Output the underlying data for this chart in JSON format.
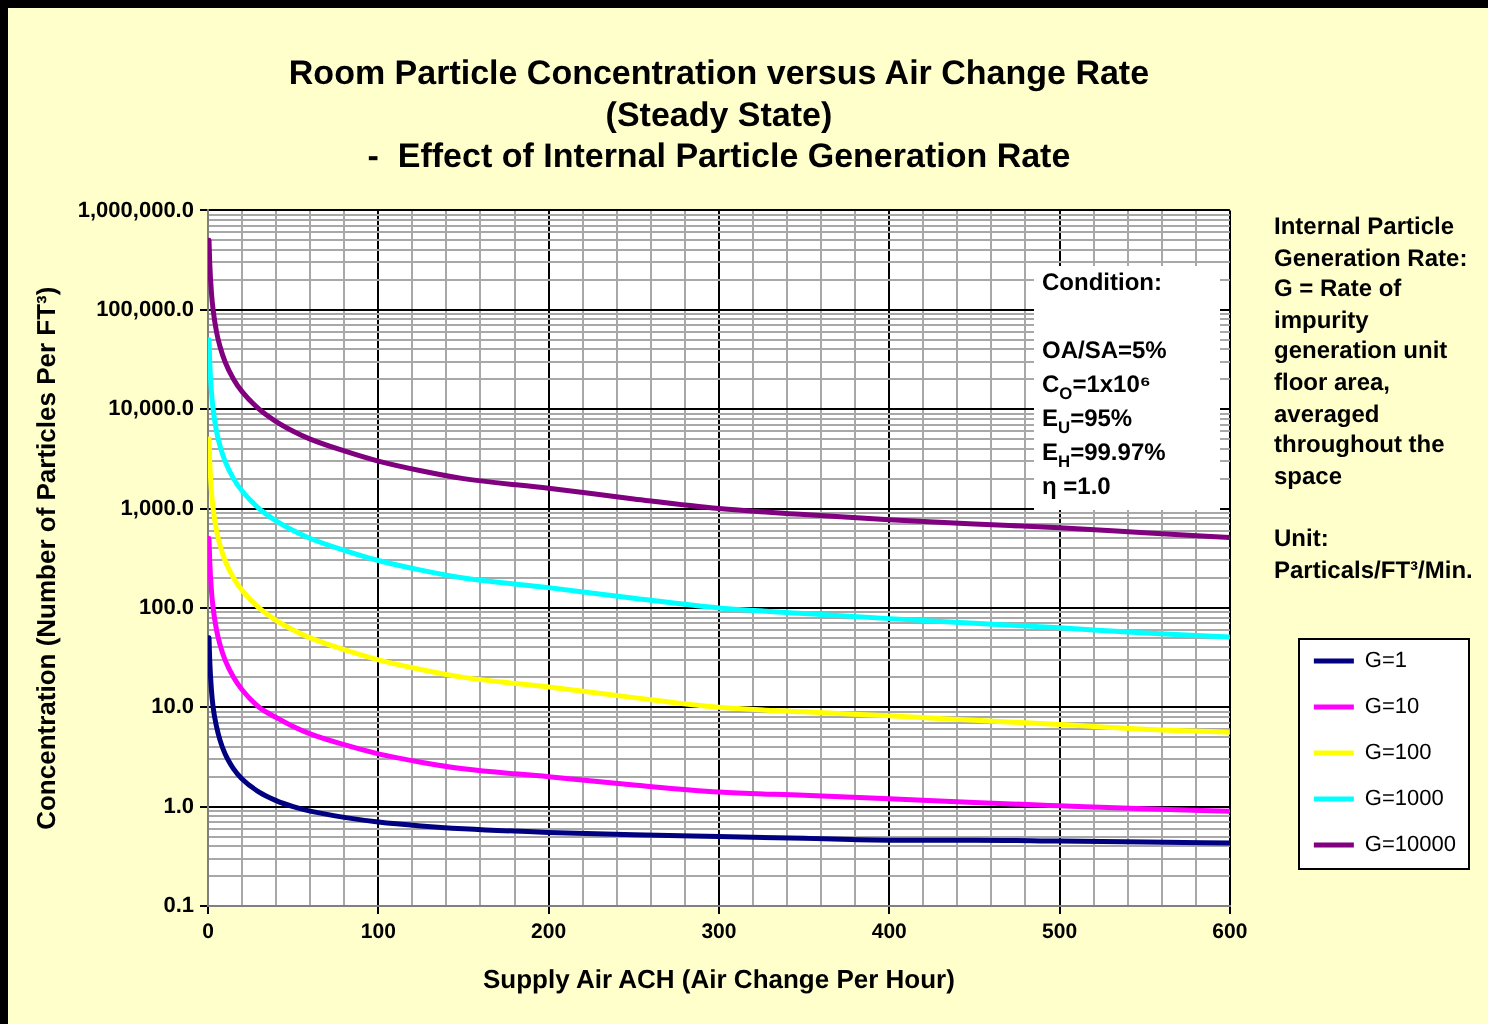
{
  "chart_data": {
    "type": "line",
    "title": "Room Particle Concentration versus Air Change Rate\n(Steady State)\n-  Effect of Internal Particle Generation Rate",
    "xlabel": "Supply Air ACH (Air Change Per Hour)",
    "ylabel": "Concentration (Number of Particles Per FT³)",
    "annotations": [
      "Condition:\n\nOA/SA=5%\nC$_{O}$=1x10⁶\nE$_{U}$=95%\nE$_{H}$=99.97%\nη =1.0",
      "Internal Particle\nGeneration Rate:\nG = Rate of\nimpurity\ngeneration unit\nfloor area,\naveraged\nthroughout the\nspace\n\nUnit:\nParticals/FT³/Min."
    ],
    "x": [
      0.6,
      1,
      2,
      3,
      5,
      7,
      10,
      15,
      20,
      30,
      40,
      50,
      60,
      80,
      100,
      125,
      150,
      200,
      250,
      300,
      350,
      400,
      450,
      500,
      550,
      600
    ],
    "series": [
      {
        "name": "G=1",
        "color": "#000080",
        "values": [
          50,
          30,
          15,
          10,
          6.4,
          4.7,
          3.4,
          2.4,
          1.9,
          1.4,
          1.15,
          1,
          0.9,
          0.78,
          0.7,
          0.64,
          0.6,
          0.55,
          0.52,
          0.5,
          0.48,
          0.46,
          0.46,
          0.45,
          0.44,
          0.43
        ]
      },
      {
        "name": "G=10",
        "color": "#ff00ff",
        "values": [
          500,
          300,
          150,
          100,
          60,
          43,
          30,
          20,
          15,
          10,
          7.9,
          6.4,
          5.4,
          4.2,
          3.4,
          2.8,
          2.4,
          2,
          1.65,
          1.4,
          1.3,
          1.2,
          1.1,
          1.02,
          0.95,
          0.9
        ]
      },
      {
        "name": "G=100",
        "color": "#ffff00",
        "values": [
          5000,
          3000,
          1500,
          1000,
          600,
          430,
          300,
          200,
          150,
          100,
          75,
          60,
          50,
          38,
          30,
          24,
          20,
          16,
          12.5,
          10,
          9,
          8.2,
          7.4,
          6.7,
          6,
          5.6
        ]
      },
      {
        "name": "G=1000",
        "color": "#00ffff",
        "values": [
          50000,
          30000,
          15000,
          10000,
          6000,
          4300,
          3000,
          2000,
          1500,
          1000,
          750,
          600,
          500,
          380,
          300,
          240,
          200,
          160,
          125,
          100,
          88,
          78,
          70,
          63,
          56,
          51
        ]
      },
      {
        "name": "G=10000",
        "color": "#800080",
        "values": [
          500000,
          300000,
          150000,
          100000,
          60000,
          43000,
          30000,
          20000,
          15000,
          10000,
          7500,
          6000,
          5000,
          3800,
          3000,
          2400,
          2000,
          1600,
          1250,
          1000,
          870,
          770,
          700,
          640,
          570,
          510
        ]
      }
    ],
    "xlim": [
      0,
      600
    ],
    "ylim": [
      0.1,
      1000000
    ],
    "xticks": [
      0,
      {
        "value": 20,
        "label": null
      },
      {
        "value": 40,
        "label": null
      },
      {
        "value": 60,
        "label": null
      },
      {
        "value": 80,
        "label": null
      },
      100,
      {
        "value": 120,
        "label": null
      },
      {
        "value": 140,
        "label": null
      },
      {
        "value": 160,
        "label": null
      },
      {
        "value": 180,
        "label": null
      },
      200,
      {
        "value": 220,
        "label": null
      },
      {
        "value": 240,
        "label": null
      },
      {
        "value": 260,
        "label": null
      },
      {
        "value": 280,
        "label": null
      },
      300,
      {
        "value": 320,
        "label": null
      },
      {
        "value": 340,
        "label": null
      },
      {
        "value": 360,
        "label": null
      },
      {
        "value": 380,
        "label": null
      },
      400,
      {
        "value": 420,
        "label": null
      },
      {
        "value": 440,
        "label": null
      },
      {
        "value": 460,
        "label": null
      },
      {
        "value": 480,
        "label": null
      },
      500,
      {
        "value": 520,
        "label": null
      },
      {
        "value": 540,
        "label": null
      },
      {
        "value": 560,
        "label": null
      },
      {
        "value": 580,
        "label": null
      },
      600
    ],
    "yticks": [
      0.1,
      {
        "value": 0.2,
        "label": null
      },
      {
        "value": 0.3,
        "label": null
      },
      {
        "value": 0.4,
        "label": null
      },
      {
        "value": 0.5,
        "label": null
      },
      {
        "value": 0.6,
        "label": null
      },
      {
        "value": 0.7,
        "label": null
      },
      {
        "value": 0.8,
        "label": null
      },
      {
        "value": 0.9,
        "label": null
      },
      {
        "value": 1,
        "label": "1.0"
      },
      {
        "value": 2,
        "label": null
      },
      {
        "value": 3,
        "label": null
      },
      {
        "value": 4,
        "label": null
      },
      {
        "value": 5,
        "label": null
      },
      {
        "value": 6,
        "label": null
      },
      {
        "value": 7,
        "label": null
      },
      {
        "value": 8,
        "label": null
      },
      {
        "value": 9,
        "label": null
      },
      {
        "value": 10,
        "label": "10.0"
      },
      {
        "value": 20,
        "label": null
      },
      {
        "value": 30,
        "label": null
      },
      {
        "value": 40,
        "label": null
      },
      {
        "value": 50,
        "label": null
      },
      {
        "value": 60,
        "label": null
      },
      {
        "value": 70,
        "label": null
      },
      {
        "value": 80,
        "label": null
      },
      {
        "value": 90,
        "label": null
      },
      {
        "value": 100,
        "label": "100.0"
      },
      {
        "value": 200,
        "label": null
      },
      {
        "value": 300,
        "label": null
      },
      {
        "value": 400,
        "label": null
      },
      {
        "value": 500,
        "label": null
      },
      {
        "value": 600,
        "label": null
      },
      {
        "value": 700,
        "label": null
      },
      {
        "value": 800,
        "label": null
      },
      {
        "value": 900,
        "label": null
      },
      {
        "value": 1000,
        "label": "1,000.0"
      },
      {
        "value": 2000,
        "label": null
      },
      {
        "value": 3000,
        "label": null
      },
      {
        "value": 4000,
        "label": null
      },
      {
        "value": 5000,
        "label": null
      },
      {
        "value": 6000,
        "label": null
      },
      {
        "value": 7000,
        "label": null
      },
      {
        "value": 8000,
        "label": null
      },
      {
        "value": 9000,
        "label": null
      },
      {
        "value": 10000,
        "label": "10,000.0"
      },
      {
        "value": 20000,
        "label": null
      },
      {
        "value": 30000,
        "label": null
      },
      {
        "value": 40000,
        "label": null
      },
      {
        "value": 50000,
        "label": null
      },
      {
        "value": 60000,
        "label": null
      },
      {
        "value": 70000,
        "label": null
      },
      {
        "value": 80000,
        "label": null
      },
      {
        "value": 90000,
        "label": null
      },
      {
        "value": 100000,
        "label": "100,000.0"
      },
      {
        "value": 200000,
        "label": null
      },
      {
        "value": 300000,
        "label": null
      },
      {
        "value": 400000,
        "label": null
      },
      {
        "value": 500000,
        "label": null
      },
      {
        "value": 600000,
        "label": null
      },
      {
        "value": 700000,
        "label": null
      },
      {
        "value": 800000,
        "label": null
      },
      {
        "value": 900000,
        "label": null
      },
      {
        "value": 1000000,
        "label": "1,000,000.0"
      }
    ],
    "log": "y",
    "grid": true,
    "legend": "right",
    "marker": "none"
  }
}
